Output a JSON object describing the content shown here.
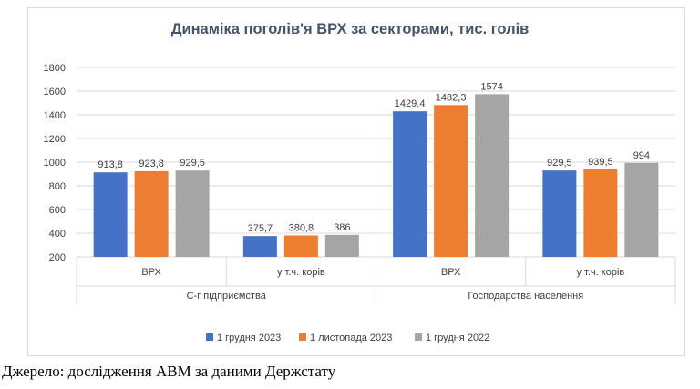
{
  "chart_data": {
    "type": "bar",
    "title": "Динаміка поголів'я ВРХ за секторами, тис. голів",
    "xlabel": "",
    "ylabel": "",
    "ylim": [
      200,
      1800
    ],
    "yticks": [
      200,
      400,
      600,
      800,
      1000,
      1200,
      1400,
      1600,
      1800
    ],
    "grid": true,
    "legend_position": "bottom",
    "groups": [
      {
        "label": "С-г підприємства",
        "categories": [
          "ВРХ",
          "у т.ч. корів"
        ]
      },
      {
        "label": "Господарства населення",
        "categories": [
          "ВРХ",
          "у т.ч. корів"
        ]
      }
    ],
    "categories": [
      "ВРХ",
      "у т.ч. корів",
      "ВРХ",
      "у т.ч. корів"
    ],
    "series": [
      {
        "name": "1 грудня 2023",
        "color": "#4472c4",
        "values": [
          913.8,
          375.7,
          1429.4,
          929.5
        ],
        "labels": [
          "913,8",
          "375,7",
          "1429,4",
          "929,5"
        ]
      },
      {
        "name": "1 листопада 2023",
        "color": "#ed7d31",
        "values": [
          923.8,
          380.8,
          1482.3,
          939.5
        ],
        "labels": [
          "923,8",
          "380,8",
          "1482,3",
          "939,5"
        ]
      },
      {
        "name": "1 грудня 2022",
        "color": "#a5a5a5",
        "values": [
          929.5,
          386,
          1574,
          994
        ],
        "labels": [
          "929,5",
          "386",
          "1574",
          "994"
        ]
      }
    ]
  },
  "source_note": "Джерело: дослідження АВМ за даними Держстату"
}
